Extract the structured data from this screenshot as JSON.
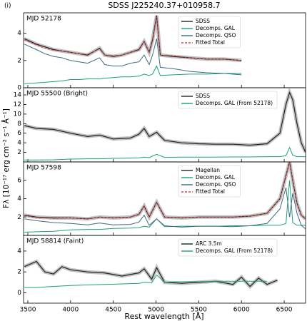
{
  "title": "SDSS J225240.37+010958.7",
  "panel_label": "(i)",
  "y_label": "Fλ [10⁻¹⁷ erg cm⁻² s⁻¹ Å⁻¹]",
  "x_label": "Rest wavelength [Å]",
  "chart_data": [
    {
      "type": "line",
      "label": "MJD 52178",
      "xlim": [
        3450,
        6750
      ],
      "ylim": [
        0,
        5.5
      ],
      "yticks": [
        0,
        2,
        4
      ],
      "x": [
        3460,
        3600,
        3700,
        3800,
        3900,
        4000,
        4100,
        4200,
        4340,
        4400,
        4500,
        4600,
        4700,
        4800,
        4861,
        4920,
        4959,
        5007,
        5050,
        5200,
        5400,
        5600,
        5800,
        6000
      ],
      "series": [
        {
          "name": "SDSS",
          "color": "#222222",
          "values": [
            3.6,
            3.2,
            3.0,
            2.8,
            2.7,
            2.6,
            2.5,
            2.4,
            2.9,
            2.4,
            2.3,
            2.4,
            2.6,
            2.8,
            3.4,
            2.6,
            3.5,
            5.3,
            2.4,
            2.3,
            2.2,
            2.1,
            2.1,
            2.0
          ]
        },
        {
          "name": "Decomps. GAL",
          "color": "#1aa37a",
          "values": [
            0.3,
            0.35,
            0.4,
            0.45,
            0.5,
            0.6,
            0.6,
            0.65,
            0.65,
            0.7,
            0.75,
            0.8,
            0.8,
            0.85,
            1.0,
            0.9,
            1.0,
            1.6,
            0.9,
            0.95,
            1.0,
            1.0,
            1.05,
            1.05
          ]
        },
        {
          "name": "Decomps. QSO",
          "color": "#3d6b80",
          "values": [
            3.2,
            2.8,
            2.5,
            2.3,
            2.2,
            2.0,
            1.9,
            1.8,
            2.2,
            1.7,
            1.6,
            1.6,
            1.8,
            1.9,
            2.4,
            1.7,
            2.4,
            3.6,
            1.5,
            1.4,
            1.2,
            1.1,
            1.05,
            0.95
          ]
        },
        {
          "name": "Fitted Total",
          "color": "#e0404a",
          "style": "dashed",
          "values": [
            3.5,
            3.15,
            2.9,
            2.75,
            2.7,
            2.6,
            2.5,
            2.45,
            2.85,
            2.4,
            2.35,
            2.4,
            2.6,
            2.75,
            3.4,
            2.6,
            3.4,
            5.2,
            2.4,
            2.35,
            2.2,
            2.1,
            2.1,
            2.0
          ]
        }
      ]
    },
    {
      "type": "line",
      "label": "MJD 55500 (Bright)",
      "xlim": [
        3450,
        6750
      ],
      "ylim": [
        0,
        15.5
      ],
      "yticks": [
        2,
        4,
        6,
        8,
        10,
        12,
        14
      ],
      "x": [
        3460,
        3600,
        3800,
        4000,
        4200,
        4340,
        4500,
        4700,
        4800,
        4861,
        4920,
        5007,
        5100,
        5300,
        5500,
        5700,
        5900,
        6100,
        6300,
        6450,
        6520,
        6563,
        6600,
        6650,
        6700,
        6750
      ],
      "series": [
        {
          "name": "SDSS",
          "color": "#222222",
          "values": [
            7.6,
            7.0,
            6.8,
            6.0,
            5.3,
            5.6,
            4.8,
            5.0,
            5.8,
            7.0,
            5.3,
            6.2,
            4.5,
            4.0,
            3.8,
            3.7,
            3.7,
            3.5,
            3.8,
            6,
            12,
            14.5,
            13,
            8,
            4,
            2
          ]
        },
        {
          "name": "Decomps. GAL (From 52178)",
          "color": "#1aa37a",
          "values": [
            0.4,
            0.4,
            0.45,
            0.6,
            0.65,
            0.65,
            0.75,
            0.8,
            0.85,
            1.0,
            0.9,
            1.6,
            0.95,
            1.0,
            1.0,
            1.0,
            1.05,
            1.05,
            1.1,
            1.1,
            1.3,
            3.0,
            1.4,
            1.1,
            1.1,
            1.1
          ]
        }
      ]
    },
    {
      "type": "line",
      "label": "MJD 57598",
      "xlim": [
        3450,
        6750
      ],
      "ylim": [
        0,
        8
      ],
      "yticks": [
        2,
        4,
        6
      ],
      "x": [
        3460,
        3600,
        3800,
        4000,
        4200,
        4340,
        4500,
        4700,
        4800,
        4861,
        4920,
        5007,
        5100,
        5300,
        5500,
        5700,
        5900,
        6100,
        6300,
        6450,
        6520,
        6563,
        6600,
        6650,
        6700,
        6750
      ],
      "series": [
        {
          "name": "Magellan",
          "color": "#222222",
          "values": [
            2.2,
            2.0,
            1.9,
            1.9,
            1.8,
            2.0,
            1.9,
            2.0,
            2.3,
            3.2,
            2.0,
            3.6,
            2.0,
            1.9,
            2.0,
            2.0,
            2.0,
            2.1,
            2.4,
            4.0,
            6.5,
            8.0,
            6.0,
            3.5,
            2.2,
            1.8
          ]
        },
        {
          "name": "Decomps. GAL",
          "color": "#1aa37a",
          "values": [
            0.35,
            0.4,
            0.45,
            0.6,
            0.65,
            0.65,
            0.75,
            0.8,
            0.85,
            1.0,
            0.9,
            1.8,
            0.95,
            1.0,
            1.0,
            1.0,
            1.05,
            1.05,
            1.1,
            1.1,
            1.3,
            6.0,
            1.4,
            1.1,
            1.1,
            1.1
          ]
        },
        {
          "name": "Decomps. QSO",
          "color": "#3d6b80",
          "values": [
            1.8,
            1.6,
            1.4,
            1.3,
            1.15,
            1.35,
            1.15,
            1.2,
            1.45,
            2.2,
            1.1,
            1.8,
            1.05,
            0.9,
            1.0,
            1.0,
            0.95,
            1.05,
            1.3,
            2.9,
            5.2,
            2.0,
            4.6,
            2.4,
            1.1,
            0.7
          ]
        },
        {
          "name": "Fitted Total",
          "color": "#e0404a",
          "style": "dashed",
          "values": [
            2.1,
            1.95,
            1.85,
            1.9,
            1.8,
            2.0,
            1.9,
            2.0,
            2.3,
            3.2,
            2.0,
            3.6,
            2.0,
            1.9,
            2.0,
            2.0,
            2.0,
            2.1,
            2.4,
            4.0,
            6.5,
            8.0,
            6.0,
            3.5,
            2.2,
            1.8
          ]
        }
      ]
    },
    {
      "type": "line",
      "label": "MJD 58814 (Faint)",
      "xlim": [
        3450,
        6750
      ],
      "ylim": [
        -1,
        5.5
      ],
      "yticks": [
        0,
        2,
        4
      ],
      "xticks": [
        3500,
        4000,
        4500,
        5000,
        5500,
        6000,
        6500
      ],
      "x": [
        3460,
        3600,
        3700,
        3800,
        3900,
        4000,
        4200,
        4400,
        4600,
        4800,
        4861,
        4950,
        5007,
        5100,
        5300,
        5500,
        5700,
        5900,
        6000,
        6100,
        6200,
        6300,
        6420
      ],
      "series": [
        {
          "name": "ARC 3.5m",
          "color": "#222222",
          "values": [
            2.5,
            3.0,
            2.0,
            1.8,
            2.5,
            2.2,
            2.0,
            1.9,
            1.6,
            1.9,
            2.3,
            1.3,
            2.4,
            1.0,
            0.9,
            1.0,
            1.1,
            0.8,
            1.5,
            0.6,
            1.4,
            0.8,
            1.2
          ]
        },
        {
          "name": "Decomps. GAL (From 52178)",
          "color": "#1aa37a",
          "values": [
            0.5,
            0.5,
            0.55,
            0.6,
            0.65,
            0.7,
            0.75,
            0.8,
            0.85,
            0.9,
            1.0,
            0.95,
            1.7,
            1.0,
            1.05,
            1.05,
            1.1,
            1.1,
            1.1,
            1.1,
            1.1,
            1.1,
            null
          ]
        }
      ]
    }
  ]
}
